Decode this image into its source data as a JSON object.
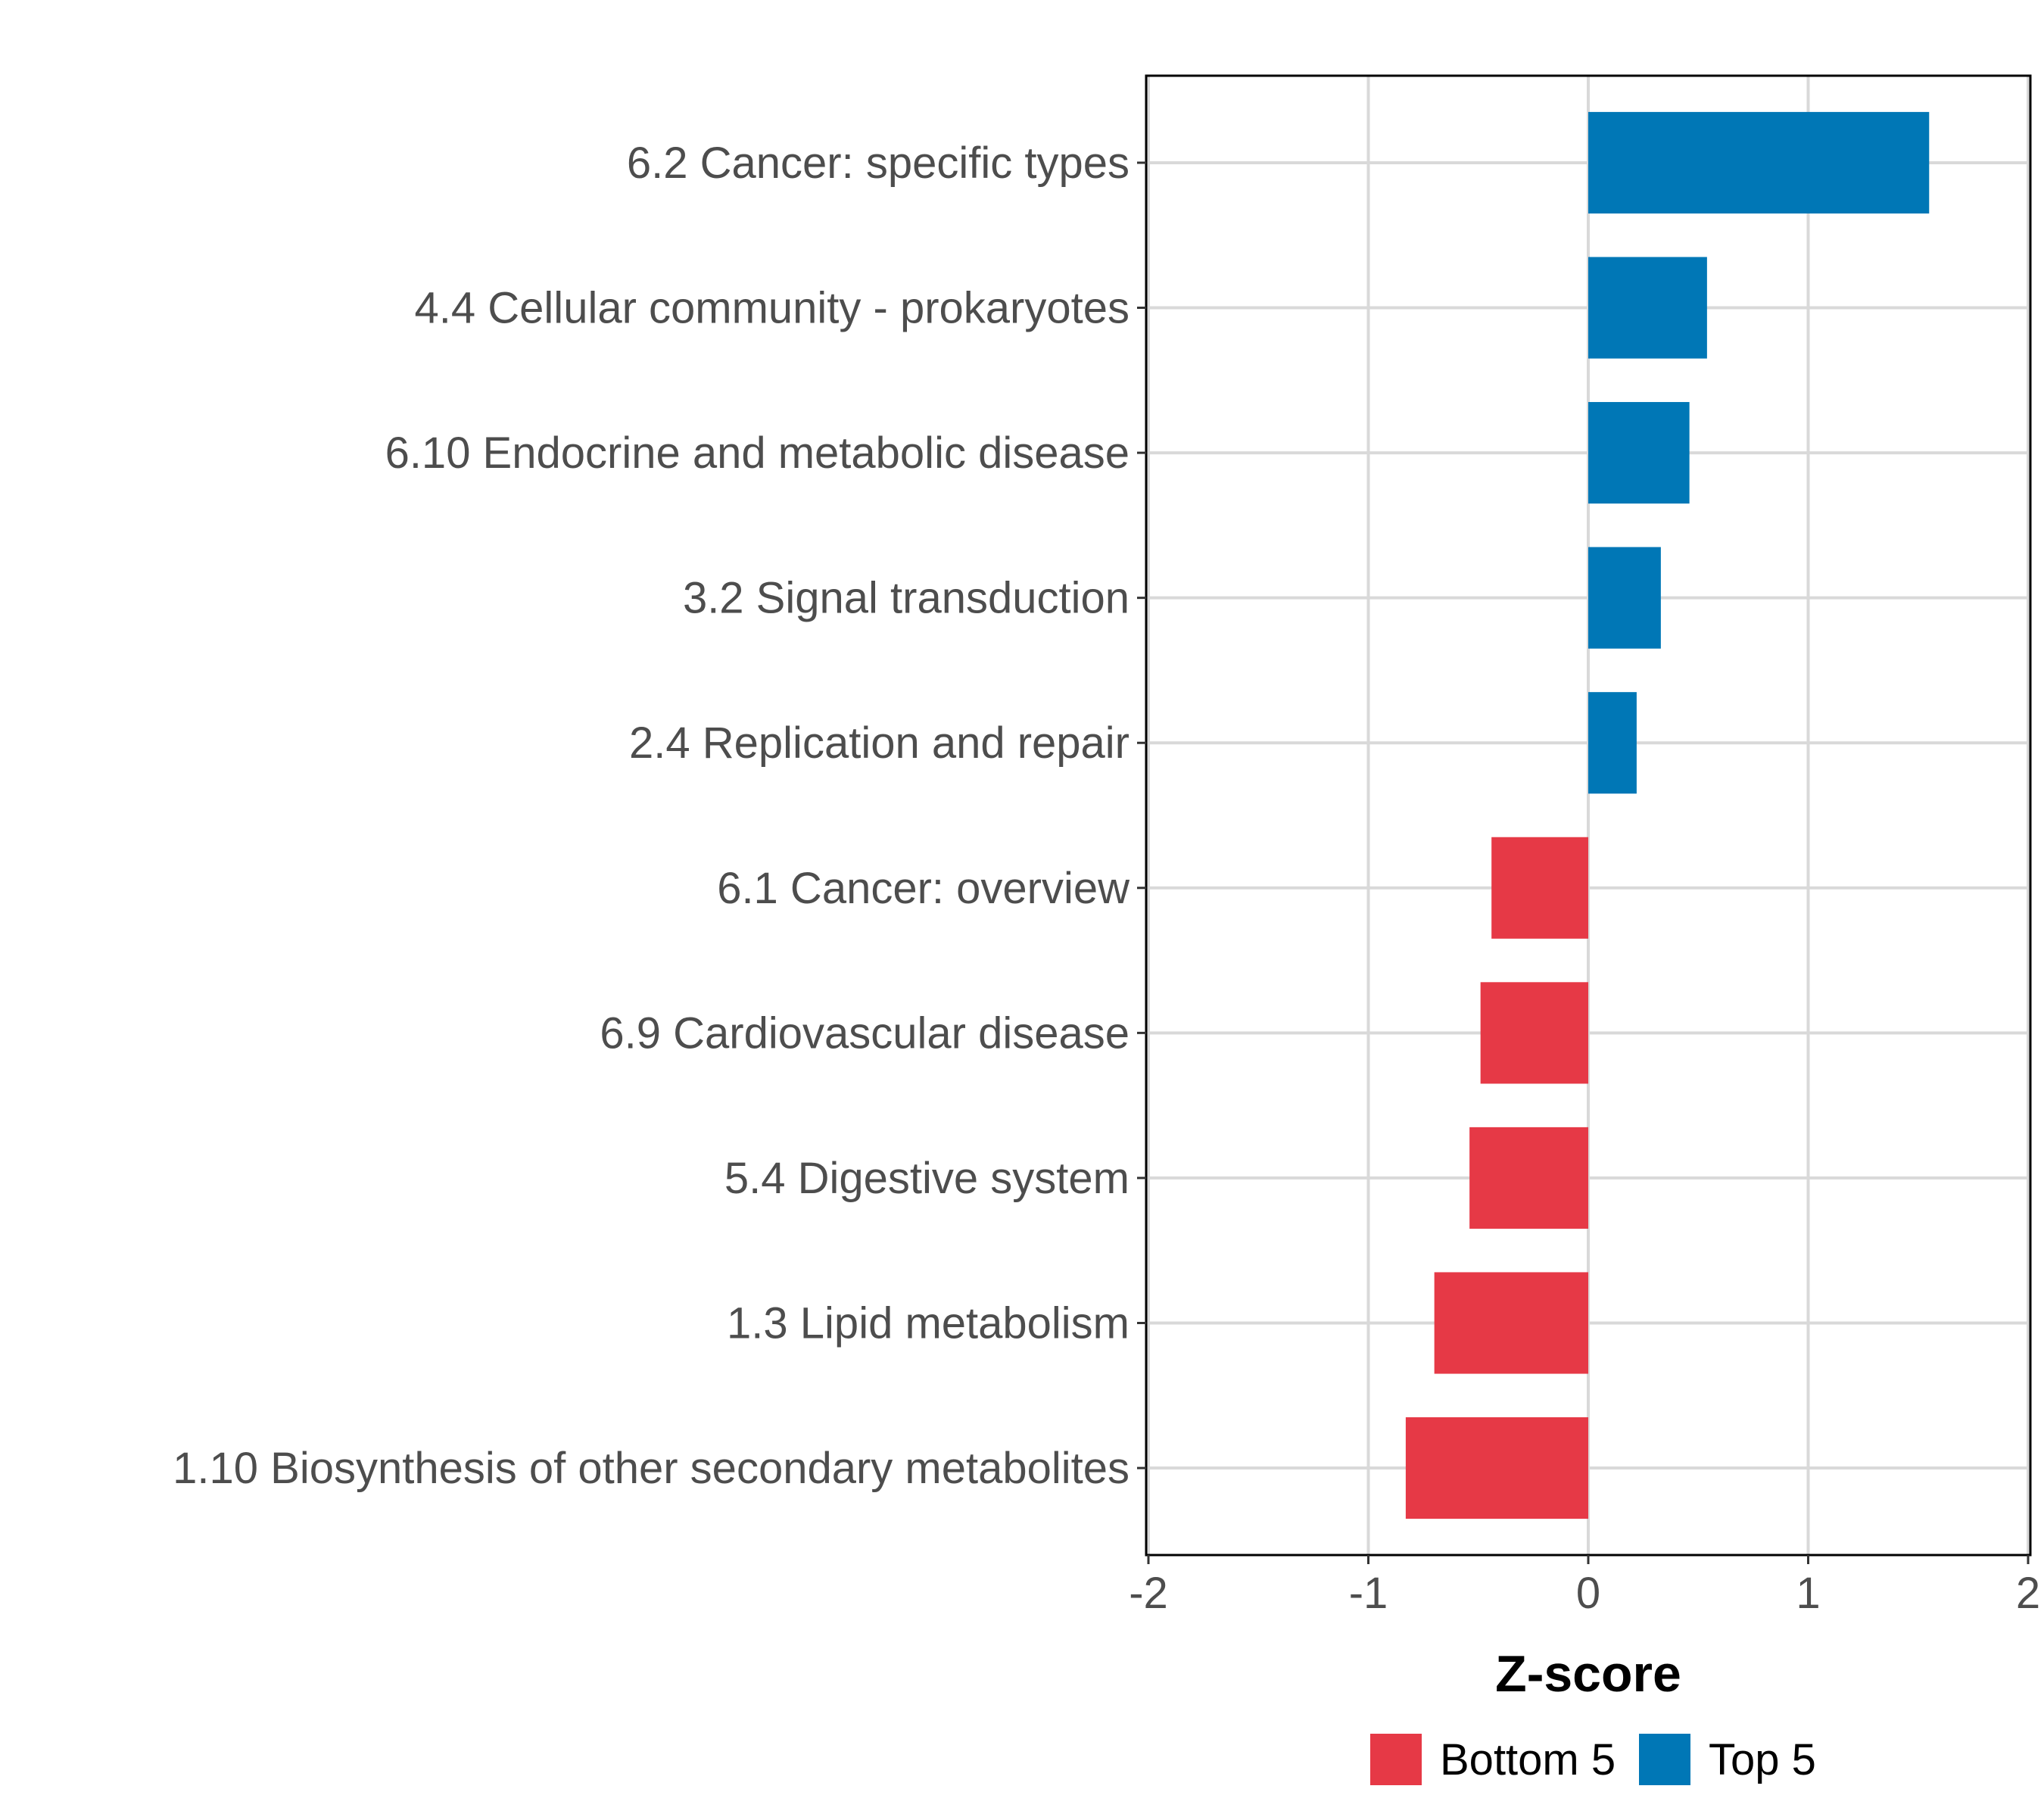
{
  "chart_data": {
    "type": "bar",
    "orientation": "horizontal",
    "categories": [
      "6.2 Cancer: specific types",
      "4.4 Cellular community - prokaryotes",
      "6.10 Endocrine and metabolic disease",
      "3.2 Signal transduction",
      "2.4 Replication and repair",
      "6.1 Cancer: overview",
      "6.9 Cardiovascular disease",
      "5.4 Digestive system",
      "1.3 Lipid metabolism",
      "1.10 Biosynthesis of other secondary metabolites"
    ],
    "values": [
      1.55,
      0.54,
      0.46,
      0.33,
      0.22,
      -0.44,
      -0.49,
      -0.54,
      -0.7,
      -0.83
    ],
    "groups": [
      "Top 5",
      "Top 5",
      "Top 5",
      "Top 5",
      "Top 5",
      "Bottom 5",
      "Bottom 5",
      "Bottom 5",
      "Bottom 5",
      "Bottom 5"
    ],
    "xlabel": "Z-score",
    "ylabel": "",
    "title": "",
    "xlim": [
      -2,
      2
    ],
    "x_ticks": [
      "-2",
      "-1",
      "0",
      "1",
      "2"
    ],
    "grid": true,
    "legend": {
      "position": "bottom",
      "entries": [
        {
          "label": "Bottom 5",
          "color": "#e63946"
        },
        {
          "label": "Top 5",
          "color": "#0077b6"
        }
      ]
    }
  }
}
